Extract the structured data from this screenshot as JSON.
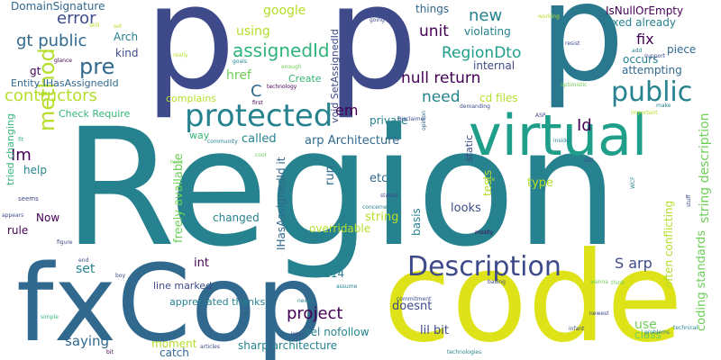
{
  "palette": {
    "dark_purple": "#440154",
    "indigo": "#3e4a89",
    "blue": "#31688e",
    "teal": "#26828e",
    "green": "#1f9e89",
    "light_green": "#35b779",
    "lime": "#6ece58",
    "yellow": "#dde318",
    "light_yellow": "#b5de2b",
    "gray_blue": "#46327e"
  },
  "words": [
    {
      "text": "Region",
      "color": "#26828e"
    },
    {
      "text": "fxCop",
      "color": "#31688e"
    },
    {
      "text": "code",
      "color": "#dde318"
    },
    {
      "text": "p",
      "color": "#3e4a89"
    },
    {
      "text": "p",
      "color": "#3e4a89"
    },
    {
      "text": "p",
      "color": "#2a788e"
    },
    {
      "text": "virtual",
      "color": "#1f9e89"
    },
    {
      "text": "protected",
      "color": "#26828e"
    },
    {
      "text": "Description",
      "color": "#3e4a89"
    },
    {
      "text": "public",
      "color": "#26828e"
    },
    {
      "text": "method",
      "color": "#b5de2b"
    },
    {
      "text": "pre",
      "color": "#31688e"
    },
    {
      "text": "assignedId",
      "color": "#2fb47c"
    },
    {
      "text": "gt public",
      "color": "#31688e"
    },
    {
      "text": "error",
      "color": "#3e4a89"
    },
    {
      "text": "DomainSignature",
      "color": "#31688e"
    },
    {
      "text": "contructors",
      "color": "#b5de2b"
    },
    {
      "text": "Entity IHasAssignedId",
      "color": "#31688e"
    },
    {
      "text": "Check Require",
      "color": "#35b779"
    },
    {
      "text": "complains",
      "color": "#b5de2b"
    },
    {
      "text": "Arch",
      "color": "#26828e"
    },
    {
      "text": "kind",
      "color": "#3e4a89"
    },
    {
      "text": "gt",
      "color": "#440154"
    },
    {
      "text": "google",
      "color": "#b5de2b"
    },
    {
      "text": "using",
      "color": "#b5de2b"
    },
    {
      "text": "href",
      "color": "#6ece58"
    },
    {
      "text": "C",
      "color": "#31688e"
    },
    {
      "text": "Create",
      "color": "#35b779"
    },
    {
      "text": "em",
      "color": "#440154"
    },
    {
      "text": "void SetAssignedId",
      "color": "#3e4a89"
    },
    {
      "text": "things",
      "color": "#31688e"
    },
    {
      "text": "new",
      "color": "#26828e"
    },
    {
      "text": "unit",
      "color": "#440154"
    },
    {
      "text": "violating",
      "color": "#26828e"
    },
    {
      "text": "RegionDto",
      "color": "#1f9e89"
    },
    {
      "text": "null return",
      "color": "#440154"
    },
    {
      "text": "internal",
      "color": "#3e4a89"
    },
    {
      "text": "need",
      "color": "#26828e"
    },
    {
      "text": "cd files",
      "color": "#b5de2b"
    },
    {
      "text": "IsNullOrEmpty",
      "color": "#440154"
    },
    {
      "text": "fixed already",
      "color": "#26828e"
    },
    {
      "text": "fix",
      "color": "#440154"
    },
    {
      "text": "piece",
      "color": "#31688e"
    },
    {
      "text": "occurs",
      "color": "#26828e"
    },
    {
      "text": "attempting",
      "color": "#31688e"
    },
    {
      "text": "Id",
      "color": "#440154"
    },
    {
      "text": "string description",
      "color": "#6ece58"
    },
    {
      "text": "private",
      "color": "#26828e"
    },
    {
      "text": "called",
      "color": "#26828e"
    },
    {
      "text": "arp Architecture",
      "color": "#31688e"
    },
    {
      "text": "way",
      "color": "#35b779"
    },
    {
      "text": "etc",
      "color": "#31688e"
    },
    {
      "text": "run",
      "color": "#31688e"
    },
    {
      "text": "static",
      "color": "#3e4a89"
    },
    {
      "text": "tests",
      "color": "#b5de2b"
    },
    {
      "text": "type",
      "color": "#b5de2b"
    },
    {
      "text": "often conflicting",
      "color": "#b5de2b"
    },
    {
      "text": "coding standards",
      "color": "#6ece58"
    },
    {
      "text": "Im",
      "color": "#440154"
    },
    {
      "text": "help",
      "color": "#26828e"
    },
    {
      "text": "tried changing",
      "color": "#35b779"
    },
    {
      "text": "rule",
      "color": "#440154"
    },
    {
      "text": "Now",
      "color": "#440154"
    },
    {
      "text": "freely available",
      "color": "#6ece58"
    },
    {
      "text": "IHasAssignedId it",
      "color": "#31688e"
    },
    {
      "text": "basis",
      "color": "#26828e"
    },
    {
      "text": "looks",
      "color": "#3e4a89"
    },
    {
      "text": "string",
      "color": "#b5de2b"
    },
    {
      "text": "overridable",
      "color": "#b5de2b"
    },
    {
      "text": "changed",
      "color": "#26828e"
    },
    {
      "text": "set",
      "color": "#26828e"
    },
    {
      "text": "int",
      "color": "#440154"
    },
    {
      "text": "line marked",
      "color": "#3e4a89"
    },
    {
      "text": "appreciated thanks",
      "color": "#26828e"
    },
    {
      "text": "CA2214",
      "color": "#26828e"
    },
    {
      "text": "S arp",
      "color": "#3e4a89"
    },
    {
      "text": "project",
      "color": "#440154"
    },
    {
      "text": "saying",
      "color": "#31688e"
    },
    {
      "text": "moment",
      "color": "#b5de2b"
    },
    {
      "text": "catch",
      "color": "#31688e"
    },
    {
      "text": "rel nofollow",
      "color": "#26828e"
    },
    {
      "text": "sharp architecture",
      "color": "#26828e"
    },
    {
      "text": "doesnt",
      "color": "#3e4a89"
    },
    {
      "text": "lil bit",
      "color": "#3e4a89"
    },
    {
      "text": "use",
      "color": "#6ece58"
    },
    {
      "text": "class",
      "color": "#6ece58"
    },
    {
      "text": "Disclaimer",
      "color": "#3e4a89"
    },
    {
      "text": "opinion",
      "color": "#31688e"
    },
    {
      "text": "going",
      "color": "#3e4a89"
    },
    {
      "text": "working",
      "color": "#b5de2b"
    },
    {
      "text": "resist",
      "color": "#3e4a89"
    },
    {
      "text": "support",
      "color": "#3e4a89"
    },
    {
      "text": "add",
      "color": "#26828e"
    },
    {
      "text": "make",
      "color": "#26828e"
    },
    {
      "text": "important",
      "color": "#b5de2b"
    },
    {
      "text": "optimistic",
      "color": "#6ece58"
    },
    {
      "text": "demanding",
      "color": "#3e4a89"
    },
    {
      "text": "technology",
      "color": "#440154"
    },
    {
      "text": "enough",
      "color": "#6ece58"
    },
    {
      "text": "goals",
      "color": "#26828e"
    },
    {
      "text": "really",
      "color": "#b5de2b"
    },
    {
      "text": "glance",
      "color": "#440154"
    },
    {
      "text": "skill",
      "color": "#b5de2b"
    },
    {
      "text": "set",
      "color": "#b5de2b"
    },
    {
      "text": "first",
      "color": "#440154"
    },
    {
      "text": "ASP",
      "color": "#3e4a89"
    },
    {
      "text": "inside",
      "color": "#26828e"
    },
    {
      "text": "still",
      "color": "#3e4a89"
    },
    {
      "text": "WCF",
      "color": "#26828e"
    },
    {
      "text": "stuff",
      "color": "#3e4a89"
    },
    {
      "text": "one",
      "color": "#b5de2b"
    },
    {
      "text": "stated",
      "color": "#3e4a89"
    },
    {
      "text": "concerned",
      "color": "#26828e"
    },
    {
      "text": "mostly",
      "color": "#440154"
    },
    {
      "text": "community",
      "color": "#26828e"
    },
    {
      "text": "cool",
      "color": "#6ece58"
    },
    {
      "text": "hard",
      "color": "#6ece58"
    },
    {
      "text": "fit",
      "color": "#35b779"
    },
    {
      "text": "seems",
      "color": "#3e4a89"
    },
    {
      "text": "appears",
      "color": "#3e4a89"
    },
    {
      "text": "figure",
      "color": "#3e4a89"
    },
    {
      "text": "end",
      "color": "#3e4a89"
    },
    {
      "text": "boy",
      "color": "#3e4a89"
    },
    {
      "text": "simple",
      "color": "#35b779"
    },
    {
      "text": "bit",
      "color": "#440154"
    },
    {
      "text": "articles",
      "color": "#3e4a89"
    },
    {
      "text": "technologies",
      "color": "#26828e"
    },
    {
      "text": "lots",
      "color": "#3e4a89"
    },
    {
      "text": "newer",
      "color": "#26828e"
    },
    {
      "text": "assume",
      "color": "#26828e"
    },
    {
      "text": "commitment",
      "color": "#3e4a89"
    },
    {
      "text": "basing",
      "color": "#3e4a89"
    },
    {
      "text": "wanna",
      "color": "#6ece58"
    },
    {
      "text": "newest",
      "color": "#3e4a89"
    },
    {
      "text": "problems",
      "color": "#26828e"
    },
    {
      "text": "infant",
      "color": "#3e4a89"
    },
    {
      "text": "technical",
      "color": "#26828e"
    },
    {
      "text": "think",
      "color": "#6ece58"
    }
  ]
}
